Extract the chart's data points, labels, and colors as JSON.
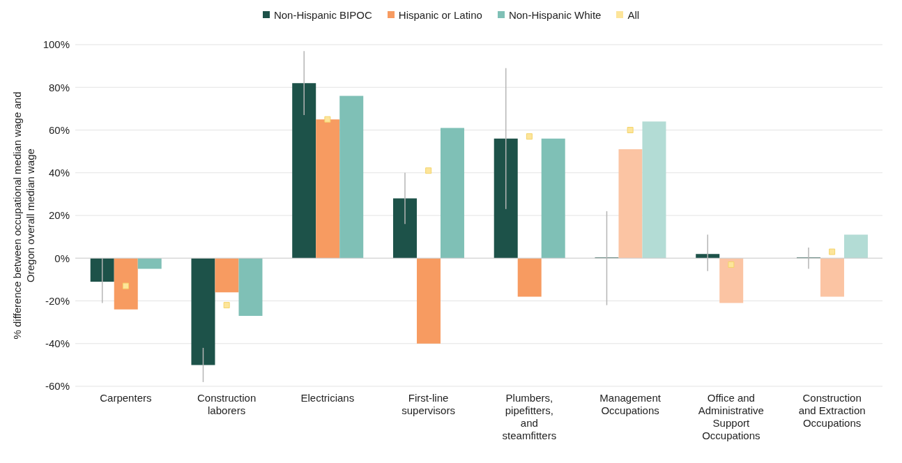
{
  "chart_data": {
    "type": "bar",
    "ylabel": "% difference between occupational median wage and Oregon overall median wage",
    "categories": [
      "Carpenters",
      "Construction laborers",
      "Electricians",
      "First-line supervisors",
      "Plumbers, pipefitters, and steamfitters",
      "Management Occupations",
      "Office and Administrative Support Occupations",
      "Construction and Extraction Occupations"
    ],
    "series": [
      {
        "name": "Non-Hispanic BIPOC",
        "color": "#1d5249",
        "values": [
          -11,
          -50,
          82,
          28,
          56,
          0,
          2,
          0
        ],
        "errors": [
          [
            -21,
            0
          ],
          [
            -58,
            -42
          ],
          [
            67,
            97
          ],
          [
            16,
            40
          ],
          [
            23,
            89
          ],
          [
            -22,
            22
          ],
          [
            -6,
            11
          ],
          [
            -5,
            5
          ]
        ]
      },
      {
        "name": "Hispanic or Latino",
        "color": "#f79b61",
        "colors": [
          "#f79b61",
          "#f79b61",
          "#f79b61",
          "#f79b61",
          "#f79b61",
          "#fbc4a3",
          "#fbc4a3",
          "#fbc4a3"
        ],
        "values": [
          -24,
          -16,
          65,
          -40,
          -18,
          51,
          -21,
          -18
        ]
      },
      {
        "name": "Non-Hispanic White",
        "color": "#7fc0b6",
        "colors": [
          "#7fc0b6",
          "#7fc0b6",
          "#7fc0b6",
          "#7fc0b6",
          "#7fc0b6",
          "#b3dcd5",
          "#b3dcd5",
          "#b3dcd5"
        ],
        "values": [
          -5,
          -27,
          76,
          61,
          56,
          64,
          null,
          11
        ]
      },
      {
        "name": "All",
        "type": "scatter",
        "marker": "square",
        "color": "#fde59a",
        "values": [
          -13,
          -22,
          65,
          41,
          57,
          60,
          -3,
          3
        ]
      }
    ],
    "ylim": [
      -60,
      100
    ],
    "yticks": [
      {
        "value": -60,
        "label": "-60%"
      },
      {
        "value": -40,
        "label": "-40%"
      },
      {
        "value": -20,
        "label": "-20%"
      },
      {
        "value": 0,
        "label": "0%"
      },
      {
        "value": 20,
        "label": "20%"
      },
      {
        "value": 40,
        "label": "40%"
      },
      {
        "value": 60,
        "label": "60%"
      },
      {
        "value": 80,
        "label": "80%"
      },
      {
        "value": 100,
        "label": "100%"
      }
    ],
    "grid": "y",
    "legend": "top"
  }
}
